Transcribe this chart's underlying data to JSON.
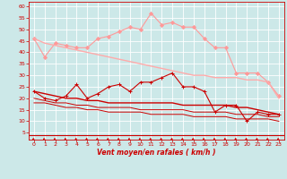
{
  "x": [
    0,
    1,
    2,
    3,
    4,
    5,
    6,
    7,
    8,
    9,
    10,
    11,
    12,
    13,
    14,
    15,
    16,
    17,
    18,
    19,
    20,
    21,
    22,
    23
  ],
  "series": [
    {
      "name": "rafales_max",
      "color": "#ff9999",
      "linewidth": 0.8,
      "marker": "D",
      "markersize": 2.0,
      "y": [
        46,
        38,
        44,
        43,
        42,
        42,
        46,
        47,
        49,
        51,
        50,
        57,
        52,
        53,
        51,
        51,
        46,
        42,
        42,
        31,
        31,
        31,
        27,
        21
      ]
    },
    {
      "name": "rafales_line",
      "color": "#ffaaaa",
      "linewidth": 1.0,
      "marker": null,
      "markersize": 0,
      "y": [
        46,
        44,
        43,
        42,
        41,
        40,
        39,
        38,
        37,
        36,
        35,
        34,
        33,
        32,
        31,
        30,
        30,
        29,
        29,
        29,
        28,
        28,
        27,
        20
      ]
    },
    {
      "name": "vent_max",
      "color": "#cc0000",
      "linewidth": 0.8,
      "marker": "+",
      "markersize": 3.0,
      "y": [
        23,
        20,
        19,
        21,
        26,
        20,
        22,
        25,
        26,
        23,
        27,
        27,
        29,
        31,
        25,
        25,
        23,
        14,
        17,
        17,
        10,
        14,
        13,
        13
      ]
    },
    {
      "name": "vent_line1",
      "color": "#cc0000",
      "linewidth": 1.0,
      "marker": null,
      "markersize": 0,
      "y": [
        23,
        22,
        21,
        20,
        20,
        19,
        19,
        18,
        18,
        18,
        18,
        18,
        18,
        18,
        17,
        17,
        17,
        17,
        17,
        16,
        16,
        15,
        14,
        13
      ]
    },
    {
      "name": "vent_line2",
      "color": "#cc0000",
      "linewidth": 0.7,
      "marker": null,
      "markersize": 0,
      "y": [
        20,
        19,
        18,
        18,
        17,
        17,
        16,
        16,
        16,
        16,
        15,
        15,
        15,
        15,
        15,
        14,
        14,
        14,
        14,
        13,
        13,
        13,
        12,
        12
      ]
    },
    {
      "name": "vent_line3",
      "color": "#cc0000",
      "linewidth": 0.7,
      "marker": null,
      "markersize": 0,
      "y": [
        18,
        18,
        17,
        16,
        16,
        15,
        15,
        14,
        14,
        14,
        14,
        13,
        13,
        13,
        13,
        12,
        12,
        12,
        12,
        11,
        11,
        11,
        11,
        10
      ]
    }
  ],
  "xlabel": "Vent moyen/en rafales ( km/h )",
  "xlim": [
    -0.5,
    23.5
  ],
  "ylim": [
    2,
    62
  ],
  "yticks": [
    5,
    10,
    15,
    20,
    25,
    30,
    35,
    40,
    45,
    50,
    55,
    60
  ],
  "xticks": [
    0,
    1,
    2,
    3,
    4,
    5,
    6,
    7,
    8,
    9,
    10,
    11,
    12,
    13,
    14,
    15,
    16,
    17,
    18,
    19,
    20,
    21,
    22,
    23
  ],
  "background_color": "#cce8e8",
  "grid_color": "#ffffff",
  "axis_color": "#cc0000",
  "label_color": "#cc0000",
  "arrow_color": "#cc0000",
  "fig_width": 3.2,
  "fig_height": 2.0,
  "dpi": 100
}
